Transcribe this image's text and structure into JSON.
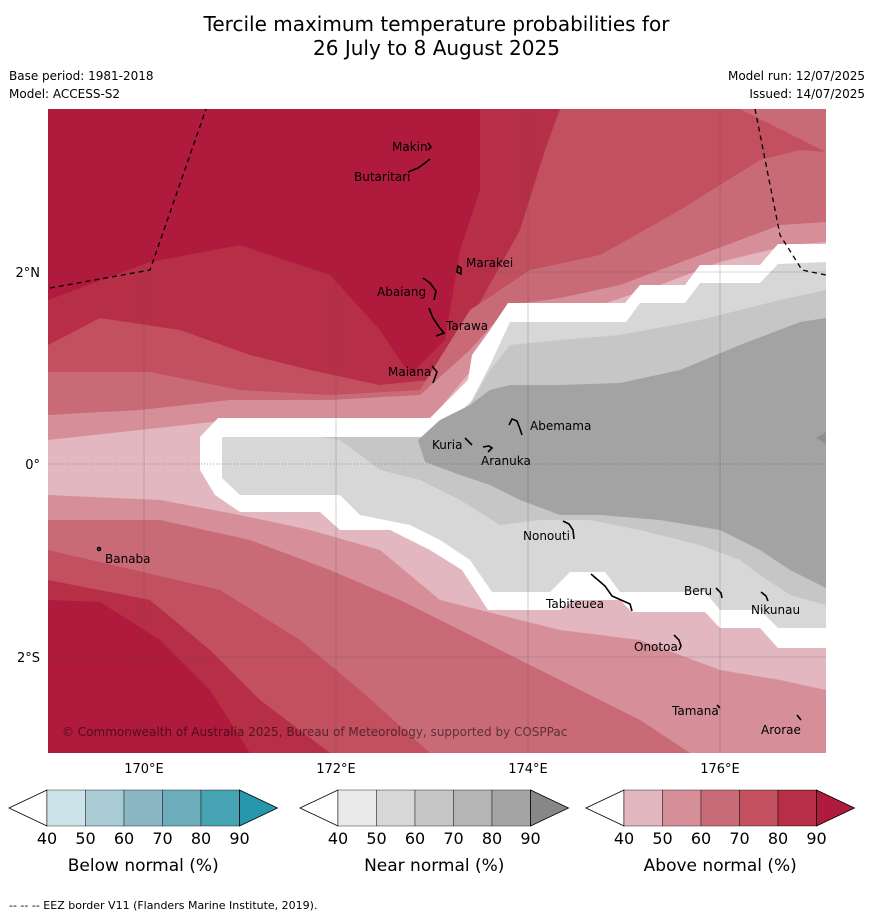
{
  "title_line1": "Tercile maximum temperature probabilities for",
  "title_line2": "26 July to 8 August 2025",
  "meta": {
    "base_period": "Base period: 1981-2018",
    "model": "Model: ACCESS-S2",
    "model_run": "Model run: 12/07/2025",
    "issued": "Issued: 14/07/2025"
  },
  "axes": {
    "lat_labels": [
      "2°N",
      "0°",
      "2°S"
    ],
    "lon_labels": [
      "170°E",
      "172°E",
      "174°E",
      "176°E"
    ]
  },
  "places": [
    {
      "name": "Makin"
    },
    {
      "name": "Butaritari"
    },
    {
      "name": "Marakei"
    },
    {
      "name": "Abaiang"
    },
    {
      "name": "Tarawa"
    },
    {
      "name": "Maiana"
    },
    {
      "name": "Abemama"
    },
    {
      "name": "Kuria"
    },
    {
      "name": "Aranuka"
    },
    {
      "name": "Banaba"
    },
    {
      "name": "Nonouti"
    },
    {
      "name": "Beru"
    },
    {
      "name": "Tabiteuea"
    },
    {
      "name": "Nikunau"
    },
    {
      "name": "Onotoa"
    },
    {
      "name": "Tamana"
    },
    {
      "name": "Arorae"
    }
  ],
  "copyright": "© Commonwealth of Australia 2025, Bureau of Meteorology, supported by COSPPac",
  "colorbars": [
    {
      "title": "Below normal (%)",
      "ticks": [
        "40",
        "50",
        "60",
        "70",
        "80",
        "90"
      ],
      "colors": [
        "#ffffff",
        "#cde3ea",
        "#a9cbd3",
        "#8ab7c3",
        "#6cacbb",
        "#46a3b3",
        "#2697ad"
      ]
    },
    {
      "title": "Near normal (%)",
      "ticks": [
        "40",
        "50",
        "60",
        "70",
        "80",
        "90"
      ],
      "colors": [
        "#ffffff",
        "#e9e9e9",
        "#d7d7d7",
        "#c6c6c6",
        "#b5b5b5",
        "#a3a3a3",
        "#878787"
      ]
    },
    {
      "title": "Above normal (%)",
      "ticks": [
        "40",
        "50",
        "60",
        "70",
        "80",
        "90"
      ],
      "colors": [
        "#ffffff",
        "#e3b7bf",
        "#d68f99",
        "#c96a77",
        "#c2505f",
        "#b72e47",
        "#b01a3c"
      ]
    }
  ],
  "footnote": "--  --  -- EEZ border V11 (Flanders Marine Institute, 2019)."
}
